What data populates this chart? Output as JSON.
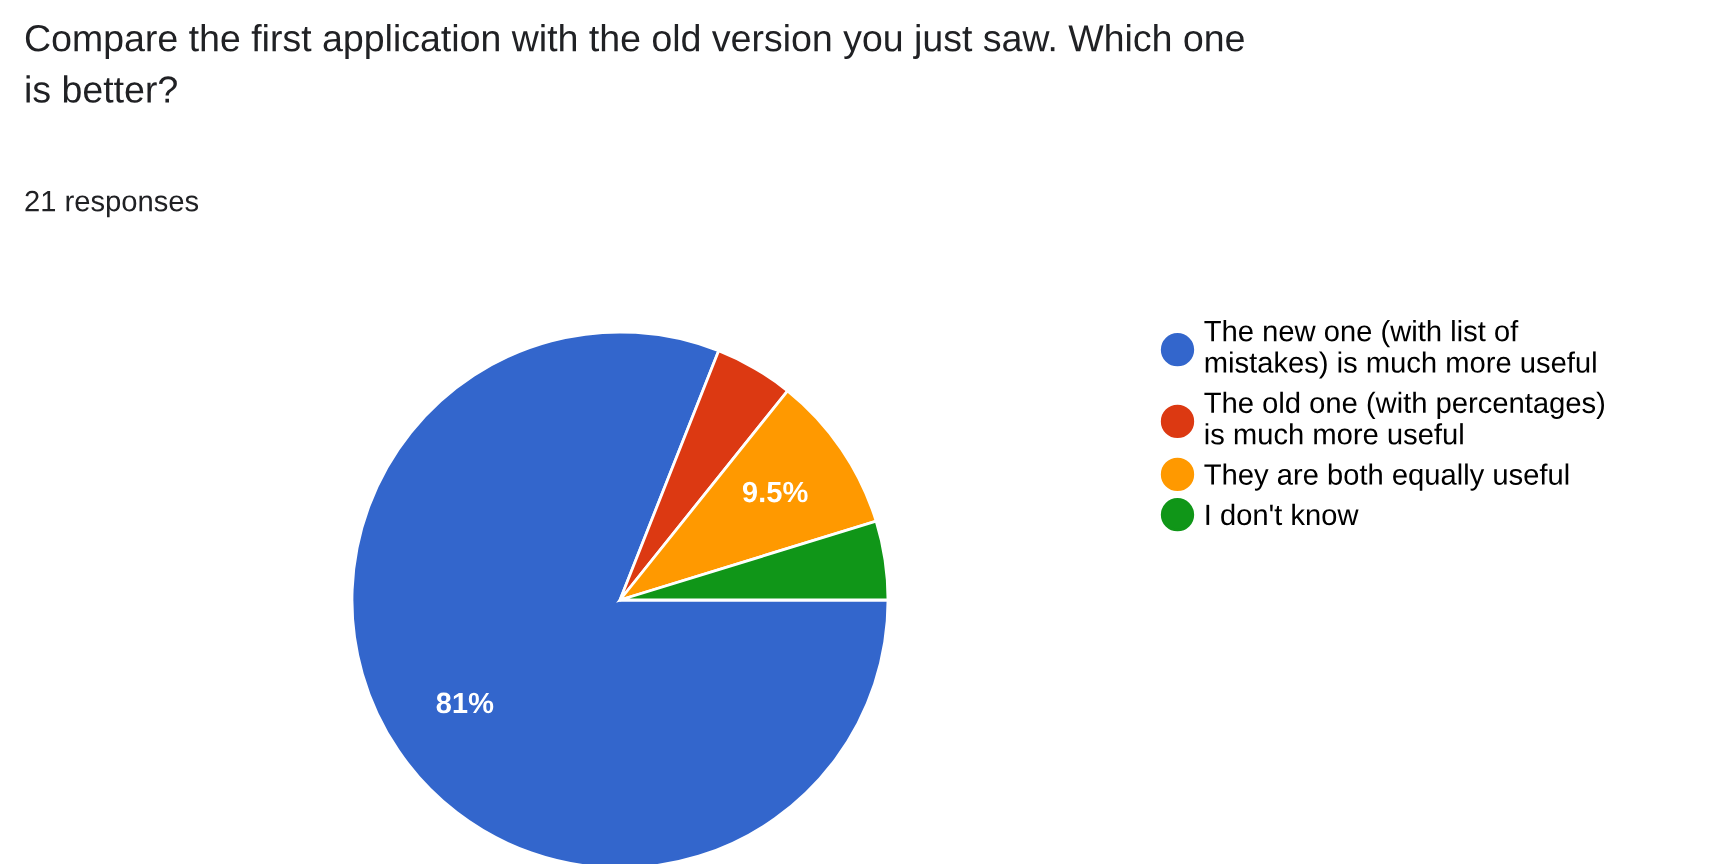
{
  "chart_data": {
    "type": "pie",
    "title": "Compare the first application with the old version you just saw. Which one\nis better?",
    "subtitle": "21 responses",
    "categories": [
      "The new one (with list of\nmistakes) is much more useful",
      "The old one (with percentages)\nis much more useful",
      "They are both equally useful",
      "I don't know"
    ],
    "values": [
      81,
      4.75,
      9.5,
      4.75
    ],
    "value_labels": [
      "81%",
      null,
      "9.5%",
      null
    ],
    "colors": [
      "#3366cc",
      "#dc3912",
      "#ff9900",
      "#109618"
    ],
    "legend": "right"
  }
}
